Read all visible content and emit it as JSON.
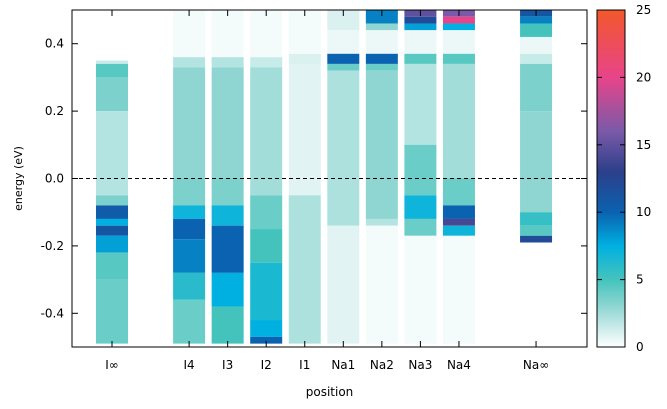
{
  "chart_data": {
    "type": "heatmap",
    "title": "",
    "xlabel": "position",
    "ylabel": "energy (eV)",
    "ylim": [
      -0.5,
      0.5
    ],
    "yticks": [
      0.4,
      0.2,
      0.0,
      -0.2,
      -0.4
    ],
    "ytick_labels": [
      "0.4",
      "0.2",
      "0.0",
      "-0.2",
      "-0.4"
    ],
    "fermi_line": {
      "y": 0.0,
      "style": "dashed"
    },
    "colorbar": {
      "range": [
        0,
        25
      ],
      "ticks": [
        0,
        5,
        10,
        15,
        20,
        25
      ],
      "tick_labels": [
        "0",
        "5",
        "10",
        "15",
        "20",
        "25"
      ],
      "stops": [
        {
          "v": 0,
          "color": "#ffffff"
        },
        {
          "v": 3,
          "color": "#8fd6d2"
        },
        {
          "v": 5,
          "color": "#44c3bd"
        },
        {
          "v": 7.5,
          "color": "#00b0e0"
        },
        {
          "v": 10,
          "color": "#0a62b0"
        },
        {
          "v": 13,
          "color": "#2c3f8a"
        },
        {
          "v": 16,
          "color": "#7a5aa8"
        },
        {
          "v": 20,
          "color": "#e8448a"
        },
        {
          "v": 25,
          "color": "#f2582a"
        }
      ]
    },
    "categories": [
      "I∞",
      "I4",
      "I3",
      "I2",
      "I1",
      "Na1",
      "Na2",
      "Na3",
      "Na4",
      "Na∞"
    ],
    "columns": [
      {
        "label": "I∞",
        "x": 0,
        "bands": [
          {
            "from": 0.34,
            "to": 0.35,
            "value": 1.5
          },
          {
            "from": 0.3,
            "to": 0.34,
            "value": 4.5
          },
          {
            "from": 0.2,
            "to": 0.3,
            "value": 3.5
          },
          {
            "from": -0.05,
            "to": 0.2,
            "value": 2.0
          },
          {
            "from": -0.08,
            "to": -0.05,
            "value": 3.5
          },
          {
            "from": -0.12,
            "to": -0.08,
            "value": 10.5
          },
          {
            "from": -0.14,
            "to": -0.12,
            "value": 7.5
          },
          {
            "from": -0.17,
            "to": -0.14,
            "value": 11.0
          },
          {
            "from": -0.22,
            "to": -0.17,
            "value": 8.0
          },
          {
            "from": -0.3,
            "to": -0.22,
            "value": 4.5
          },
          {
            "from": -0.49,
            "to": -0.3,
            "value": 4.0
          }
        ]
      },
      {
        "label": "I4",
        "x": 2,
        "bands": [
          {
            "from": 0.36,
            "to": 0.5,
            "value": 0.3
          },
          {
            "from": 0.33,
            "to": 0.36,
            "value": 2.0
          },
          {
            "from": 0.0,
            "to": 0.33,
            "value": 3.0
          },
          {
            "from": -0.08,
            "to": 0.0,
            "value": 3.5
          },
          {
            "from": -0.12,
            "to": -0.08,
            "value": 7.0
          },
          {
            "from": -0.18,
            "to": -0.12,
            "value": 10.0
          },
          {
            "from": -0.28,
            "to": -0.18,
            "value": 9.0
          },
          {
            "from": -0.36,
            "to": -0.28,
            "value": 6.0
          },
          {
            "from": -0.49,
            "to": -0.36,
            "value": 4.0
          }
        ]
      },
      {
        "label": "I3",
        "x": 3,
        "bands": [
          {
            "from": 0.36,
            "to": 0.5,
            "value": 0.3
          },
          {
            "from": 0.33,
            "to": 0.36,
            "value": 2.0
          },
          {
            "from": 0.0,
            "to": 0.33,
            "value": 3.0
          },
          {
            "from": -0.08,
            "to": 0.0,
            "value": 3.5
          },
          {
            "from": -0.14,
            "to": -0.08,
            "value": 7.0
          },
          {
            "from": -0.28,
            "to": -0.14,
            "value": 10.0
          },
          {
            "from": -0.38,
            "to": -0.28,
            "value": 7.5
          },
          {
            "from": -0.49,
            "to": -0.38,
            "value": 5.0
          }
        ]
      },
      {
        "label": "I2",
        "x": 4,
        "bands": [
          {
            "from": 0.36,
            "to": 0.5,
            "value": 0.3
          },
          {
            "from": 0.33,
            "to": 0.36,
            "value": 1.5
          },
          {
            "from": -0.05,
            "to": 0.33,
            "value": 2.5
          },
          {
            "from": -0.15,
            "to": -0.05,
            "value": 4.0
          },
          {
            "from": -0.25,
            "to": -0.15,
            "value": 5.0
          },
          {
            "from": -0.42,
            "to": -0.25,
            "value": 6.5
          },
          {
            "from": -0.47,
            "to": -0.42,
            "value": 7.5
          },
          {
            "from": -0.49,
            "to": -0.47,
            "value": 10.0
          }
        ]
      },
      {
        "label": "I1",
        "x": 5,
        "bands": [
          {
            "from": 0.37,
            "to": 0.5,
            "value": 0.3
          },
          {
            "from": 0.34,
            "to": 0.37,
            "value": 1.0
          },
          {
            "from": -0.05,
            "to": 0.34,
            "value": 0.8
          },
          {
            "from": -0.49,
            "to": -0.05,
            "value": 2.2
          }
        ]
      },
      {
        "label": "Na1",
        "x": 6,
        "bands": [
          {
            "from": 0.44,
            "to": 0.5,
            "value": 1.0
          },
          {
            "from": 0.37,
            "to": 0.44,
            "value": 0.5
          },
          {
            "from": 0.34,
            "to": 0.37,
            "value": 10.0
          },
          {
            "from": 0.32,
            "to": 0.34,
            "value": 4.0
          },
          {
            "from": -0.14,
            "to": 0.32,
            "value": 2.2
          },
          {
            "from": -0.49,
            "to": -0.14,
            "value": 0.8
          }
        ]
      },
      {
        "label": "Na2",
        "x": 7,
        "bands": [
          {
            "from": 0.46,
            "to": 0.5,
            "value": 9.0
          },
          {
            "from": 0.44,
            "to": 0.46,
            "value": 3.0
          },
          {
            "from": 0.37,
            "to": 0.44,
            "value": 0.5
          },
          {
            "from": 0.34,
            "to": 0.37,
            "value": 10.0
          },
          {
            "from": 0.32,
            "to": 0.34,
            "value": 4.0
          },
          {
            "from": -0.12,
            "to": 0.32,
            "value": 3.0
          },
          {
            "from": -0.14,
            "to": -0.12,
            "value": 2.0
          },
          {
            "from": -0.49,
            "to": -0.14,
            "value": 0.3
          }
        ]
      },
      {
        "label": "Na3",
        "x": 8,
        "bands": [
          {
            "from": 0.48,
            "to": 0.5,
            "value": 15.0
          },
          {
            "from": 0.46,
            "to": 0.48,
            "value": 12.0
          },
          {
            "from": 0.44,
            "to": 0.46,
            "value": 8.0
          },
          {
            "from": 0.37,
            "to": 0.44,
            "value": 0.5
          },
          {
            "from": 0.34,
            "to": 0.37,
            "value": 4.5
          },
          {
            "from": 0.1,
            "to": 0.34,
            "value": 2.0
          },
          {
            "from": -0.05,
            "to": 0.1,
            "value": 4.0
          },
          {
            "from": -0.12,
            "to": -0.05,
            "value": 7.0
          },
          {
            "from": -0.17,
            "to": -0.12,
            "value": 4.0
          },
          {
            "from": -0.49,
            "to": -0.17,
            "value": 0.3
          }
        ]
      },
      {
        "label": "Na4",
        "x": 9,
        "bands": [
          {
            "from": 0.48,
            "to": 0.5,
            "value": 16.0
          },
          {
            "from": 0.46,
            "to": 0.48,
            "value": 20.0
          },
          {
            "from": 0.44,
            "to": 0.46,
            "value": 7.5
          },
          {
            "from": 0.37,
            "to": 0.44,
            "value": 0.5
          },
          {
            "from": 0.34,
            "to": 0.37,
            "value": 4.5
          },
          {
            "from": 0.0,
            "to": 0.34,
            "value": 2.5
          },
          {
            "from": -0.08,
            "to": 0.0,
            "value": 4.0
          },
          {
            "from": -0.12,
            "to": -0.08,
            "value": 10.0
          },
          {
            "from": -0.14,
            "to": -0.12,
            "value": 14.0
          },
          {
            "from": -0.17,
            "to": -0.14,
            "value": 7.0
          },
          {
            "from": -0.49,
            "to": -0.17,
            "value": 0.3
          }
        ]
      },
      {
        "label": "Na∞",
        "x": 11,
        "bands": [
          {
            "from": 0.48,
            "to": 0.5,
            "value": 11.0
          },
          {
            "from": 0.46,
            "to": 0.48,
            "value": 9.0
          },
          {
            "from": 0.42,
            "to": 0.46,
            "value": 5.0
          },
          {
            "from": 0.37,
            "to": 0.42,
            "value": 0.5
          },
          {
            "from": 0.34,
            "to": 0.37,
            "value": 1.5
          },
          {
            "from": 0.2,
            "to": 0.34,
            "value": 3.5
          },
          {
            "from": -0.1,
            "to": 0.2,
            "value": 3.0
          },
          {
            "from": -0.14,
            "to": -0.1,
            "value": 5.5
          },
          {
            "from": -0.17,
            "to": -0.14,
            "value": 4.5
          },
          {
            "from": -0.19,
            "to": -0.17,
            "value": 12.0
          },
          {
            "from": -0.49,
            "to": -0.19,
            "value": 0.0
          }
        ]
      }
    ]
  }
}
